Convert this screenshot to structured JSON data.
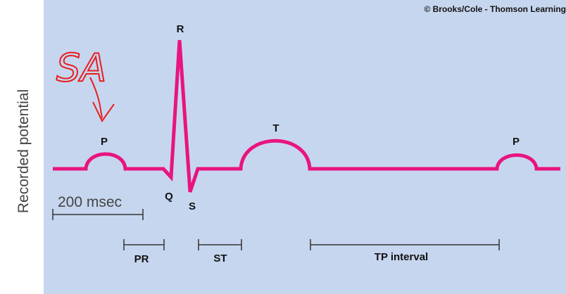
{
  "copyright": "© Brooks/Cole - Thomson Learning",
  "y_axis_label": "Recorded potential",
  "annotation": "SA",
  "waves": {
    "p1": "P",
    "q": "Q",
    "r": "R",
    "s": "S",
    "t": "T",
    "p2": "P"
  },
  "scale_label": "200 msec",
  "intervals": {
    "pr": "PR",
    "st": "ST",
    "tp": "TP interval"
  }
}
